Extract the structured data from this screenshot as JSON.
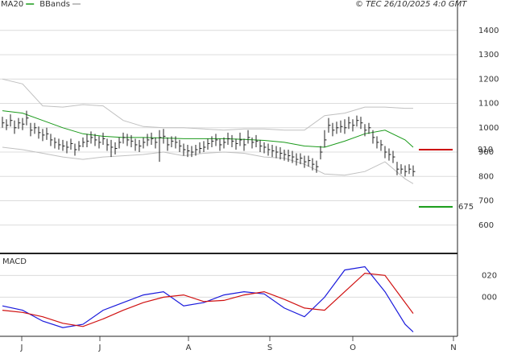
{
  "chart_data": [
    {
      "type": "ohlc",
      "legend": [
        {
          "name": "MA20",
          "color": "#1a9a1a"
        },
        {
          "name": "BBands",
          "color": "#aaaaaa"
        }
      ],
      "copyright": "© TEC 26/10/2025 4:0 GMT",
      "xlim": [
        -0.6,
        113
      ],
      "xticks": [
        {
          "value": 4.8,
          "label": "J"
        },
        {
          "value": 24.2,
          "label": "J"
        },
        {
          "value": 46.2,
          "label": "A"
        },
        {
          "value": 66.4,
          "label": "S"
        },
        {
          "value": 87,
          "label": "O"
        },
        {
          "value": 112,
          "label": "N"
        }
      ],
      "ylim": [
        500,
        1525
      ],
      "yticks": [
        600,
        700,
        800,
        900,
        1000,
        1100,
        1200,
        1300,
        1400
      ],
      "grid": true,
      "high": [
        1045,
        1035,
        1055,
        1030,
        1040,
        1040,
        1070,
        1020,
        1020,
        1005,
        995,
        1000,
        975,
        960,
        955,
        950,
        945,
        955,
        935,
        945,
        960,
        975,
        985,
        975,
        965,
        980,
        955,
        950,
        940,
        960,
        980,
        975,
        970,
        955,
        950,
        960,
        975,
        980,
        960,
        990,
        995,
        960,
        965,
        965,
        950,
        935,
        930,
        925,
        930,
        940,
        945,
        955,
        965,
        975,
        955,
        960,
        980,
        970,
        955,
        980,
        955,
        990,
        960,
        970,
        950,
        940,
        935,
        930,
        925,
        920,
        910,
        910,
        905,
        895,
        895,
        885,
        885,
        875,
        865,
        925,
        990,
        1040,
        1020,
        1025,
        1030,
        1035,
        1045,
        1035,
        1050,
        1045,
        1015,
        1020,
        990,
        965,
        950,
        925,
        915,
        905,
        860,
        850,
        845,
        850,
        845
      ],
      "low": [
        1000,
        990,
        1005,
        975,
        995,
        990,
        1010,
        965,
        975,
        955,
        945,
        950,
        925,
        915,
        910,
        905,
        895,
        910,
        885,
        905,
        920,
        920,
        935,
        925,
        915,
        930,
        905,
        880,
        890,
        915,
        935,
        925,
        920,
        905,
        900,
        915,
        925,
        930,
        915,
        860,
        935,
        905,
        920,
        915,
        900,
        885,
        880,
        880,
        885,
        895,
        900,
        910,
        920,
        925,
        905,
        915,
        930,
        920,
        910,
        925,
        905,
        935,
        915,
        920,
        900,
        895,
        885,
        880,
        875,
        870,
        865,
        860,
        855,
        845,
        850,
        835,
        840,
        825,
        815,
        870,
        920,
        980,
        965,
        975,
        980,
        975,
        995,
        985,
        1005,
        995,
        965,
        975,
        935,
        915,
        905,
        875,
        865,
        855,
        805,
        810,
        800,
        810,
        800
      ],
      "close": [
        1020,
        1010,
        1030,
        1000,
        1020,
        1015,
        1040,
        990,
        1000,
        980,
        970,
        975,
        950,
        940,
        930,
        925,
        920,
        935,
        910,
        925,
        940,
        945,
        960,
        950,
        940,
        955,
        930,
        920,
        915,
        940,
        960,
        950,
        945,
        930,
        925,
        940,
        950,
        955,
        940,
        960,
        965,
        930,
        945,
        940,
        925,
        910,
        905,
        900,
        910,
        915,
        920,
        935,
        945,
        950,
        930,
        940,
        955,
        945,
        935,
        950,
        930,
        960,
        940,
        945,
        925,
        920,
        910,
        905,
        900,
        895,
        890,
        885,
        880,
        870,
        875,
        860,
        865,
        850,
        840,
        900,
        950,
        1010,
        990,
        1000,
        1005,
        1000,
        1020,
        1010,
        1030,
        1020,
        990,
        1000,
        960,
        940,
        930,
        900,
        890,
        880,
        830,
        830,
        820,
        830,
        820
      ],
      "bar_color": "#222222",
      "lines": [
        {
          "name": "MA20",
          "color": "#1a9a1a",
          "x": [
            0,
            5,
            10,
            15,
            20,
            25,
            30,
            35,
            40,
            45,
            50,
            55,
            60,
            65,
            70,
            75,
            80,
            85,
            90,
            95,
            100,
            102
          ],
          "values": [
            1070,
            1060,
            1030,
            1000,
            975,
            965,
            960,
            960,
            958,
            955,
            955,
            955,
            952,
            948,
            940,
            925,
            920,
            945,
            975,
            990,
            950,
            920
          ]
        },
        {
          "name": "BBands",
          "color": "#c0c0c0",
          "x": [
            0,
            5,
            10,
            15,
            20,
            25,
            30,
            35,
            40,
            45,
            50,
            55,
            60,
            65,
            70,
            75,
            80,
            85,
            90,
            95,
            100,
            102
          ],
          "values": [
            1200,
            1180,
            1090,
            1085,
            1095,
            1090,
            1030,
            1005,
            1000,
            1000,
            995,
            990,
            995,
            995,
            990,
            990,
            1050,
            1060,
            1085,
            1085,
            1080,
            1080
          ]
        },
        {
          "name": "BBands",
          "color": "#c0c0c0",
          "x": [
            0,
            5,
            10,
            15,
            20,
            25,
            30,
            35,
            40,
            45,
            50,
            55,
            60,
            65,
            70,
            75,
            80,
            85,
            90,
            95,
            100,
            102
          ],
          "values": [
            920,
            910,
            895,
            880,
            870,
            880,
            885,
            890,
            900,
            885,
            895,
            900,
            895,
            880,
            875,
            850,
            810,
            805,
            820,
            860,
            790,
            770
          ]
        }
      ],
      "levels": [
        {
          "value": 910,
          "color": "#cc0000"
        },
        {
          "value": 675,
          "color": "#119911"
        }
      ]
    },
    {
      "type": "line",
      "title": "MACD",
      "xlim": [
        -0.6,
        113
      ],
      "ylim": [
        -36,
        38
      ],
      "yticks": [
        {
          "value": 0,
          "label": "000"
        },
        {
          "value": 20,
          "label": "020"
        }
      ],
      "x": [
        0,
        5,
        10,
        15,
        20,
        25,
        30,
        35,
        40,
        45,
        50,
        55,
        60,
        65,
        70,
        75,
        80,
        85,
        90,
        95,
        100,
        102
      ],
      "series": [
        {
          "color": "#1a1adc",
          "values": [
            -8,
            -12,
            -22,
            -28,
            -25,
            -12,
            -5,
            2,
            5,
            -8,
            -5,
            2,
            5,
            3,
            -10,
            -18,
            0,
            25,
            28,
            5,
            -25,
            -32
          ]
        },
        {
          "color": "#d01010",
          "values": [
            -12,
            -14,
            -18,
            -24,
            -27,
            -20,
            -12,
            -5,
            0,
            2,
            -4,
            -3,
            2,
            5,
            -2,
            -10,
            -12,
            5,
            22,
            20,
            -5,
            -15
          ]
        }
      ]
    }
  ]
}
